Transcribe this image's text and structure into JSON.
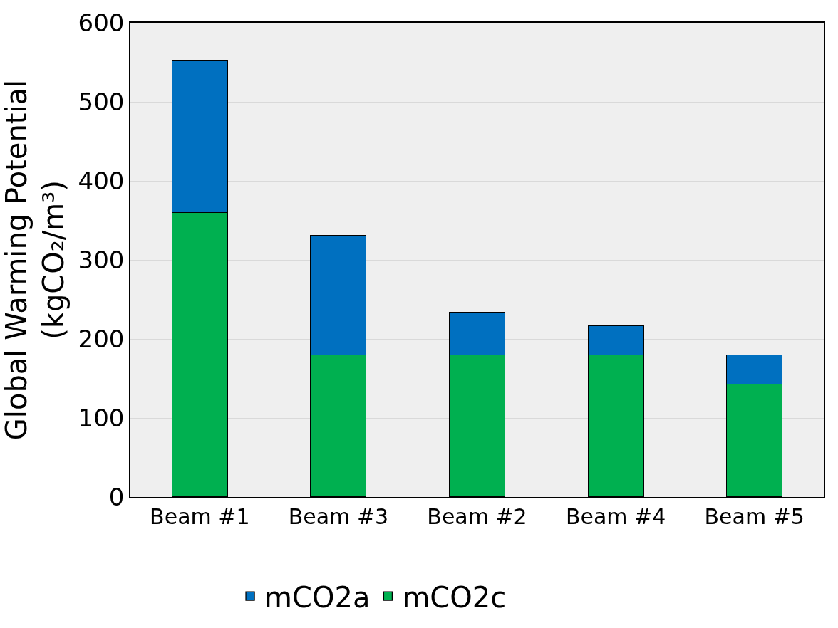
{
  "chart_data": {
    "type": "bar",
    "stacked": true,
    "ylabel": "Global Warming Potential\n(kgCO₂/m³)",
    "categories": [
      "Beam #1",
      "Beam #3",
      "Beam #2",
      "Beam #4",
      "Beam #5"
    ],
    "series": [
      {
        "name": "mCO2c",
        "color": "#00b050",
        "values": [
          360,
          180,
          180,
          180,
          143
        ]
      },
      {
        "name": "mCO2a",
        "color": "#0070c0",
        "values": [
          193,
          151,
          54,
          37,
          37
        ]
      }
    ],
    "ylim": [
      0,
      600
    ],
    "yticks": [
      0,
      100,
      200,
      300,
      400,
      500,
      600
    ],
    "grid": "y",
    "legend": "bottom"
  }
}
